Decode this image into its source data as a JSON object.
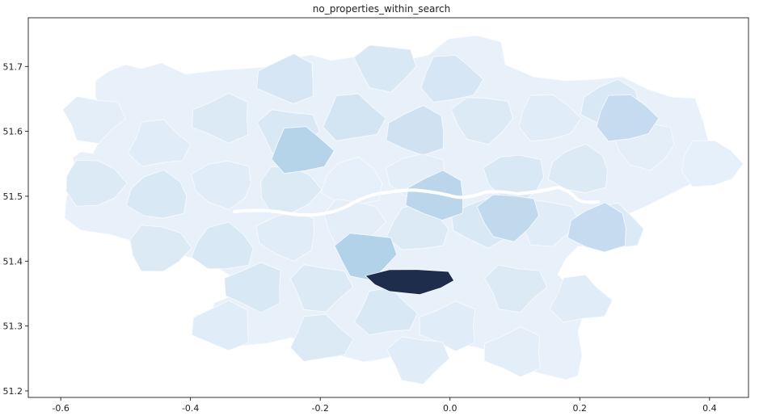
{
  "chart_data": {
    "type": "choropleth",
    "title": "no_properties_within_search",
    "xlabel": "",
    "ylabel": "",
    "xlim": [
      -0.65,
      0.46
    ],
    "ylim": [
      51.19,
      51.775
    ],
    "x_ticks": [
      "-0.6",
      "-0.4",
      "-0.2",
      "0.0",
      "0.2",
      "0.4"
    ],
    "y_ticks": [
      "51.2",
      "51.3",
      "51.4",
      "51.5",
      "51.6",
      "51.7"
    ],
    "colormap": "Blues",
    "colors": {
      "lightest": "#f2f8fd",
      "light": "#e3eef8",
      "medium": "#cfe1f2",
      "dark": "#a6cbe3",
      "max": "#1f2d4d",
      "river": "#ffffff"
    },
    "regions": [
      {
        "lon": -0.55,
        "lat": 51.62,
        "level": 0.12
      },
      {
        "lon": -0.45,
        "lat": 51.58,
        "level": 0.14
      },
      {
        "lon": -0.35,
        "lat": 51.62,
        "level": 0.16
      },
      {
        "lon": -0.25,
        "lat": 51.6,
        "level": 0.18
      },
      {
        "lon": -0.15,
        "lat": 51.62,
        "level": 0.22
      },
      {
        "lon": -0.25,
        "lat": 51.68,
        "level": 0.2
      },
      {
        "lon": -0.1,
        "lat": 51.7,
        "level": 0.18
      },
      {
        "lon": 0.0,
        "lat": 51.68,
        "level": 0.2
      },
      {
        "lon": -0.05,
        "lat": 51.6,
        "level": 0.24
      },
      {
        "lon": 0.05,
        "lat": 51.62,
        "level": 0.16
      },
      {
        "lon": 0.15,
        "lat": 51.62,
        "level": 0.14
      },
      {
        "lon": 0.25,
        "lat": 51.64,
        "level": 0.18
      },
      {
        "lon": 0.3,
        "lat": 51.58,
        "level": 0.12
      },
      {
        "lon": 0.4,
        "lat": 51.55,
        "level": 0.1
      },
      {
        "lon": 0.2,
        "lat": 51.54,
        "level": 0.16
      },
      {
        "lon": 0.1,
        "lat": 51.53,
        "level": 0.18
      },
      {
        "lon": -0.55,
        "lat": 51.52,
        "level": 0.16
      },
      {
        "lon": -0.45,
        "lat": 51.5,
        "level": 0.18
      },
      {
        "lon": -0.35,
        "lat": 51.52,
        "level": 0.14
      },
      {
        "lon": -0.25,
        "lat": 51.51,
        "level": 0.16
      },
      {
        "lon": -0.15,
        "lat": 51.52,
        "level": 0.1
      },
      {
        "lon": -0.05,
        "lat": 51.53,
        "level": 0.12
      },
      {
        "lon": -0.45,
        "lat": 51.42,
        "level": 0.16
      },
      {
        "lon": -0.35,
        "lat": 51.42,
        "level": 0.18
      },
      {
        "lon": -0.25,
        "lat": 51.44,
        "level": 0.14
      },
      {
        "lon": -0.15,
        "lat": 51.46,
        "level": 0.12
      },
      {
        "lon": -0.05,
        "lat": 51.45,
        "level": 0.16
      },
      {
        "lon": 0.05,
        "lat": 51.46,
        "level": 0.18
      },
      {
        "lon": 0.15,
        "lat": 51.46,
        "level": 0.14
      },
      {
        "lon": 0.25,
        "lat": 51.45,
        "level": 0.16
      },
      {
        "lon": -0.3,
        "lat": 51.36,
        "level": 0.18
      },
      {
        "lon": -0.2,
        "lat": 51.36,
        "level": 0.16
      },
      {
        "lon": -0.1,
        "lat": 51.32,
        "level": 0.18
      },
      {
        "lon": 0.0,
        "lat": 51.3,
        "level": 0.14
      },
      {
        "lon": 0.1,
        "lat": 51.36,
        "level": 0.16
      },
      {
        "lon": 0.2,
        "lat": 51.34,
        "level": 0.14
      },
      {
        "lon": 0.1,
        "lat": 51.26,
        "level": 0.12
      },
      {
        "lon": -0.05,
        "lat": 51.25,
        "level": 0.14
      },
      {
        "lon": -0.2,
        "lat": 51.28,
        "level": 0.16
      },
      {
        "lon": -0.35,
        "lat": 51.3,
        "level": 0.14
      },
      {
        "lon": -0.13,
        "lat": 51.41,
        "level": 0.38
      },
      {
        "lon": -0.23,
        "lat": 51.57,
        "level": 0.36
      },
      {
        "lon": -0.02,
        "lat": 51.5,
        "level": 0.34
      },
      {
        "lon": 0.09,
        "lat": 51.47,
        "level": 0.32
      },
      {
        "lon": 0.27,
        "lat": 51.62,
        "level": 0.3
      },
      {
        "lon": 0.23,
        "lat": 51.45,
        "level": 0.3
      },
      {
        "lon": -0.06,
        "lat": 51.37,
        "level": 1.0
      }
    ]
  }
}
